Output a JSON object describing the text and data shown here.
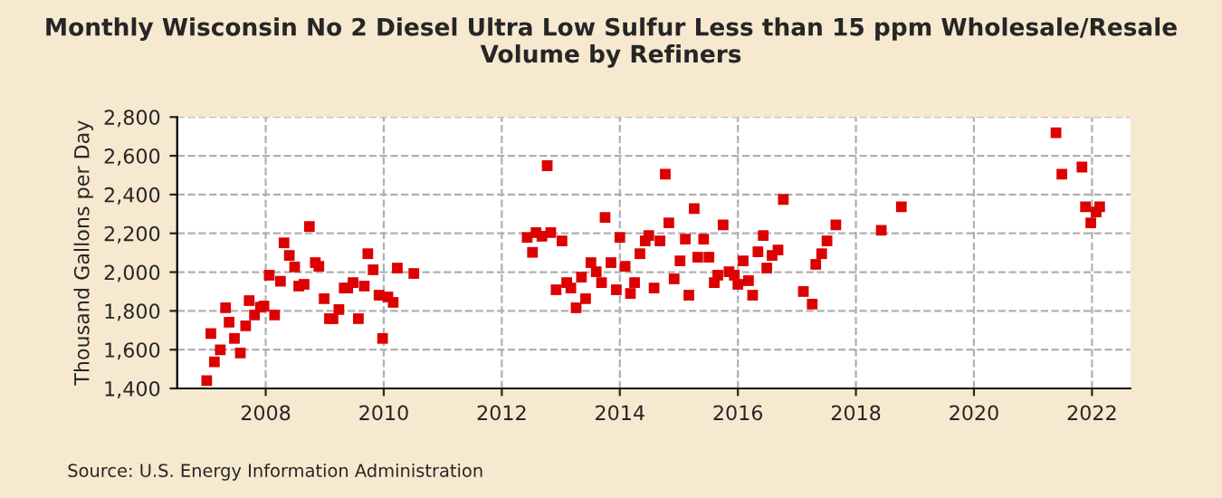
{
  "chart_data": {
    "type": "scatter",
    "title": "Monthly Wisconsin No 2 Diesel Ultra Low Sulfur Less than 15 ppm Wholesale/Resale Volume by Refiners",
    "ylabel": "Thousand Gallons per Day",
    "annotations": [
      "Source: U.S. Energy Information Administration"
    ],
    "series": [
      {
        "color": "#dd0000",
        "x": [
          2007.0,
          2007.07,
          2007.13,
          2007.23,
          2007.32,
          2007.38,
          2007.47,
          2007.57,
          2007.66,
          2007.72,
          2007.81,
          2007.91,
          2007.97,
          2008.06,
          2008.15,
          2008.25,
          2008.31,
          2008.4,
          2008.49,
          2008.56,
          2008.65,
          2008.74,
          2008.84,
          2008.9,
          2008.99,
          2009.08,
          2009.14,
          2009.24,
          2009.33,
          2009.39,
          2009.48,
          2009.57,
          2009.67,
          2009.73,
          2009.82,
          2009.92,
          2009.98,
          2010.07,
          2010.16,
          2010.23,
          2010.51,
          2012.43,
          2012.52,
          2012.58,
          2012.68,
          2012.77,
          2012.83,
          2012.92,
          2013.02,
          2013.1,
          2013.17,
          2013.26,
          2013.35,
          2013.42,
          2013.51,
          2013.6,
          2013.69,
          2013.75,
          2013.85,
          2013.94,
          2014.0,
          2014.09,
          2014.18,
          2014.25,
          2014.34,
          2014.43,
          2014.49,
          2014.58,
          2014.68,
          2014.77,
          2014.83,
          2014.92,
          2015.02,
          2015.11,
          2015.17,
          2015.26,
          2015.32,
          2015.42,
          2015.51,
          2015.6,
          2015.66,
          2015.75,
          2015.85,
          2015.94,
          2016.0,
          2016.09,
          2016.18,
          2016.25,
          2016.34,
          2016.43,
          2016.49,
          2016.58,
          2016.68,
          2016.77,
          2017.11,
          2017.26,
          2017.32,
          2017.42,
          2017.51,
          2017.66,
          2018.43,
          2018.77,
          2021.39,
          2021.49,
          2021.83,
          2021.89,
          2021.98,
          2022.07,
          2022.13
        ],
        "values": [
          1440,
          1683,
          1537,
          1599,
          1816,
          1742,
          1658,
          1583,
          1723,
          1853,
          1779,
          1819,
          1825,
          1984,
          1779,
          1953,
          2151,
          2086,
          2027,
          1928,
          1937,
          2235,
          2049,
          2030,
          1863,
          1760,
          1760,
          1807,
          1918,
          1918,
          1946,
          1760,
          1928,
          2095,
          2012,
          1881,
          1658,
          1872,
          1844,
          2021,
          1993,
          2179,
          2102,
          2204,
          2185,
          2549,
          2204,
          1909,
          2161,
          1946,
          1918,
          1816,
          1974,
          1863,
          2049,
          2002,
          1946,
          2282,
          2049,
          1909,
          2179,
          2030,
          1890,
          1946,
          2095,
          2161,
          2189,
          1918,
          2161,
          2505,
          2254,
          1965,
          2058,
          2170,
          1881,
          2328,
          2077,
          2170,
          2077,
          1946,
          1984,
          2244,
          2002,
          1984,
          1937,
          2058,
          1956,
          1881,
          2105,
          2189,
          2021,
          2086,
          2114,
          2375,
          1900,
          1835,
          2040,
          2095,
          2161,
          2244,
          2216,
          2337,
          2719,
          2505,
          2542,
          2337,
          2254,
          2310,
          2337
        ]
      }
    ],
    "xlim": [
      2006.5,
      2022.65
    ],
    "xticks": [
      2008,
      2010,
      2012,
      2014,
      2016,
      2018,
      2020,
      2022
    ],
    "ylim": [
      1400,
      2800
    ],
    "yticks": [
      {
        "value": 1400,
        "label": "1,400"
      },
      {
        "value": 1600,
        "label": "1,600"
      },
      {
        "value": 1800,
        "label": "1,800"
      },
      {
        "value": 2000,
        "label": "2,000"
      },
      {
        "value": 2200,
        "label": "2,200"
      },
      {
        "value": 2400,
        "label": "2,400"
      },
      {
        "value": 2600,
        "label": "2,600"
      },
      {
        "value": 2800,
        "label": "2,800"
      }
    ],
    "grid": true,
    "marker": "square"
  }
}
